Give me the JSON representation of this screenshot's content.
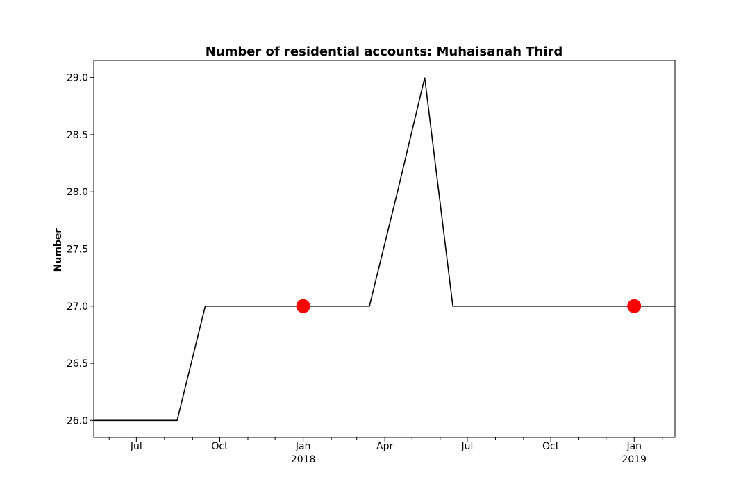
{
  "chart_data": {
    "type": "line",
    "title": "Number of residential accounts: Muhaisanah Third",
    "xlabel": "",
    "ylabel": "Number",
    "x_range": [
      "2017-05-15",
      "2019-02-15"
    ],
    "ylim": [
      25.85,
      29.15
    ],
    "y_ticks": [
      26.0,
      26.5,
      27.0,
      27.5,
      28.0,
      28.5,
      29.0
    ],
    "y_tick_labels": [
      "26.0",
      "26.5",
      "27.0",
      "27.5",
      "28.0",
      "28.5",
      "29.0"
    ],
    "x_major_ticks": [
      {
        "date": "2017-07-01",
        "label": "Jul",
        "year": ""
      },
      {
        "date": "2017-10-01",
        "label": "Oct",
        "year": ""
      },
      {
        "date": "2018-01-01",
        "label": "Jan",
        "year": "2018"
      },
      {
        "date": "2018-04-01",
        "label": "Apr",
        "year": ""
      },
      {
        "date": "2018-07-01",
        "label": "Jul",
        "year": ""
      },
      {
        "date": "2018-10-01",
        "label": "Oct",
        "year": ""
      },
      {
        "date": "2019-01-01",
        "label": "Jan",
        "year": "2019"
      }
    ],
    "x_minor_ticks": [
      "2017-06-01",
      "2017-08-01",
      "2017-09-01",
      "2017-11-01",
      "2017-12-01",
      "2018-02-01",
      "2018-03-01",
      "2018-05-01",
      "2018-06-01",
      "2018-08-01",
      "2018-09-01",
      "2018-11-01",
      "2018-12-01",
      "2019-02-01"
    ],
    "grid": false,
    "series": [
      {
        "color": "#000000",
        "x": [
          "2017-05-15",
          "2017-08-15",
          "2017-09-15",
          "2017-10-15",
          "2017-11-15",
          "2017-12-15",
          "2018-01-15",
          "2018-02-15",
          "2018-03-15",
          "2018-04-15",
          "2018-05-15",
          "2018-06-15",
          "2018-07-15",
          "2018-08-15",
          "2018-09-15",
          "2018-10-15",
          "2018-11-15",
          "2018-12-15",
          "2019-01-15",
          "2019-02-15"
        ],
        "y": [
          26,
          26,
          27,
          27,
          27,
          27,
          27,
          27,
          27,
          28,
          29,
          27,
          27,
          27,
          27,
          27,
          27,
          27,
          27,
          27
        ]
      }
    ],
    "markers": {
      "color": "#ff0000",
      "points": [
        {
          "x": "2018-01-01",
          "y": 27
        },
        {
          "x": "2019-01-01",
          "y": 27
        }
      ]
    }
  }
}
